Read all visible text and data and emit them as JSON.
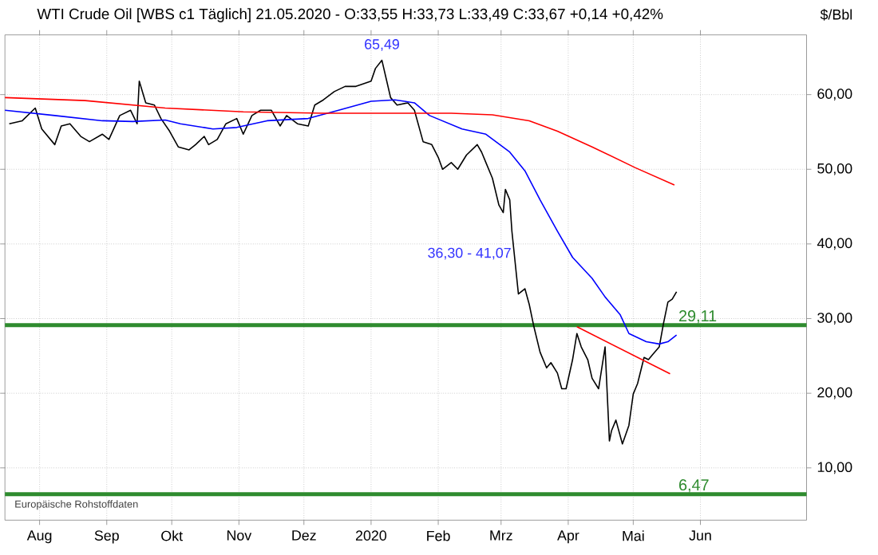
{
  "chart_data": {
    "type": "line",
    "title": "WTI Crude Oil [WBS c1 Täglich] 21.05.2020 - O:33,55 H:33,73 L:33,49 C:33,67 +0,14 +0,42%",
    "ylabel": "$/Bbl",
    "xlim": [
      "2019-07-16",
      "2020-07-20"
    ],
    "xticks": [
      {
        "value": "2019-08-01",
        "label": "Aug"
      },
      {
        "value": "2019-09-01",
        "label": "Sep"
      },
      {
        "value": "2019-10-01",
        "label": "Okt"
      },
      {
        "value": "2019-11-01",
        "label": "Nov"
      },
      {
        "value": "2019-12-01",
        "label": "Dez"
      },
      {
        "value": "2020-01-01",
        "label": "2020"
      },
      {
        "value": "2020-02-01",
        "label": "Feb"
      },
      {
        "value": "2020-03-01",
        "label": "Mrz"
      },
      {
        "value": "2020-04-01",
        "label": "Apr"
      },
      {
        "value": "2020-05-01",
        "label": "Mai"
      },
      {
        "value": "2020-06-01",
        "label": "Jun"
      }
    ],
    "ylim": [
      3,
      68
    ],
    "yticks": [
      {
        "value": 10,
        "label": "10,00"
      },
      {
        "value": 20,
        "label": "20,00"
      },
      {
        "value": 30,
        "label": "30,00"
      },
      {
        "value": 40,
        "label": "40,00"
      },
      {
        "value": 50,
        "label": "50,00"
      },
      {
        "value": 60,
        "label": "60,00"
      }
    ],
    "grid": true,
    "series": [
      {
        "color": "#000000",
        "x": [
          "2019-07-18",
          "2019-07-24",
          "2019-07-30",
          "2019-08-02",
          "2019-08-08",
          "2019-08-11",
          "2019-08-15",
          "2019-08-20",
          "2019-08-24",
          "2019-08-30",
          "2019-09-02",
          "2019-09-07",
          "2019-09-12",
          "2019-09-15",
          "2019-09-16",
          "2019-09-19",
          "2019-09-23",
          "2019-09-26",
          "2019-09-30",
          "2019-10-04",
          "2019-10-09",
          "2019-10-12",
          "2019-10-16",
          "2019-10-18",
          "2019-10-22",
          "2019-10-26",
          "2019-10-31",
          "2019-11-03",
          "2019-11-07",
          "2019-11-11",
          "2019-11-16",
          "2019-11-20",
          "2019-11-23",
          "2019-11-28",
          "2019-12-03",
          "2019-12-06",
          "2019-12-10",
          "2019-12-15",
          "2019-12-20",
          "2019-12-25",
          "2019-12-28",
          "2020-01-01",
          "2020-01-03",
          "2020-01-06",
          "2020-01-08",
          "2020-01-10",
          "2020-01-13",
          "2020-01-18",
          "2020-01-21",
          "2020-01-23",
          "2020-01-25",
          "2020-01-29",
          "2020-02-01",
          "2020-02-03",
          "2020-02-07",
          "2020-02-10",
          "2020-02-14",
          "2020-02-19",
          "2020-02-21",
          "2020-02-23",
          "2020-02-26",
          "2020-02-29",
          "2020-03-02",
          "2020-03-03",
          "2020-03-05",
          "2020-03-06",
          "2020-03-09",
          "2020-03-12",
          "2020-03-14",
          "2020-03-16",
          "2020-03-19",
          "2020-03-22",
          "2020-03-24",
          "2020-03-27",
          "2020-03-29",
          "2020-03-31",
          "2020-04-03",
          "2020-04-05",
          "2020-04-07",
          "2020-04-10",
          "2020-04-12",
          "2020-04-15",
          "2020-04-18",
          "2020-04-20",
          "2020-04-21",
          "2020-04-23",
          "2020-04-26",
          "2020-04-29",
          "2020-05-01",
          "2020-05-03",
          "2020-05-06",
          "2020-05-08",
          "2020-05-10",
          "2020-05-13",
          "2020-05-15",
          "2020-05-17",
          "2020-05-19",
          "2020-05-21"
        ],
        "values": [
          56.1,
          56.5,
          58.2,
          55.4,
          53.3,
          55.8,
          56.1,
          54.4,
          53.7,
          54.7,
          54.0,
          57.2,
          57.9,
          56.1,
          61.8,
          58.9,
          58.6,
          56.8,
          55.1,
          53.0,
          52.6,
          53.3,
          54.4,
          53.3,
          54.0,
          56.1,
          56.8,
          54.7,
          57.2,
          57.9,
          57.9,
          55.8,
          57.2,
          56.1,
          55.8,
          58.6,
          59.3,
          60.4,
          61.1,
          61.1,
          61.4,
          61.8,
          63.5,
          64.6,
          62.1,
          59.6,
          58.6,
          58.9,
          57.9,
          55.8,
          53.7,
          53.3,
          51.6,
          50.0,
          50.9,
          50.0,
          51.9,
          53.3,
          52.3,
          50.9,
          48.8,
          45.2,
          44.2,
          47.3,
          45.9,
          41.7,
          33.3,
          34.0,
          31.9,
          29.1,
          25.5,
          23.4,
          24.1,
          22.7,
          20.6,
          20.6,
          24.5,
          28.0,
          26.2,
          24.5,
          22.0,
          20.6,
          26.2,
          13.6,
          15.0,
          16.4,
          13.2,
          15.7,
          19.9,
          21.3,
          24.8,
          24.5,
          25.2,
          26.2,
          29.4,
          32.2,
          32.6,
          33.6
        ]
      },
      {
        "color": "#0000ff",
        "x": [
          "2019-07-16",
          "2019-08-08",
          "2019-08-30",
          "2019-09-13",
          "2019-09-28",
          "2019-10-05",
          "2019-10-20",
          "2019-10-31",
          "2019-11-14",
          "2019-12-03",
          "2019-12-17",
          "2020-01-01",
          "2020-01-12",
          "2020-01-21",
          "2020-01-28",
          "2020-02-12",
          "2020-02-23",
          "2020-03-05",
          "2020-03-12",
          "2020-03-19",
          "2020-03-27",
          "2020-04-03",
          "2020-04-12",
          "2020-04-18",
          "2020-04-25",
          "2020-04-29",
          "2020-05-07",
          "2020-05-13",
          "2020-05-17",
          "2020-05-21"
        ],
        "values": [
          57.9,
          57.2,
          56.5,
          56.4,
          56.6,
          56.1,
          55.4,
          55.6,
          56.5,
          56.8,
          57.9,
          59.1,
          59.3,
          58.9,
          57.2,
          55.4,
          54.7,
          52.3,
          49.8,
          45.9,
          41.7,
          38.2,
          35.4,
          32.9,
          30.5,
          28.0,
          26.9,
          26.6,
          26.9,
          27.8
        ]
      },
      {
        "color": "#ff0000",
        "x": [
          "2019-07-16",
          "2019-08-22",
          "2019-09-28",
          "2019-11-03",
          "2019-12-10",
          "2020-02-07",
          "2020-02-26",
          "2020-03-14",
          "2020-03-27",
          "2020-04-12",
          "2020-05-02",
          "2020-05-20"
        ],
        "values": [
          59.6,
          59.2,
          58.2,
          57.7,
          57.5,
          57.5,
          57.3,
          56.5,
          55.1,
          53.0,
          50.2,
          47.9
        ]
      },
      {
        "color": "#ff0000",
        "x": [
          "2020-04-05",
          "2020-05-18"
        ],
        "values": [
          28.9,
          22.6
        ]
      }
    ],
    "ref_lines": [
      {
        "axis": "y",
        "value": 29.11,
        "label": "29,11",
        "color": "#2e8b2e"
      },
      {
        "axis": "y",
        "value": 6.47,
        "label": "6,47",
        "color": "#2e8b2e"
      }
    ],
    "annotations": [
      {
        "text": "65,49",
        "x": "2020-01-06",
        "y": 65.49
      },
      {
        "text": "36,30 - 41,07",
        "x": "2020-03-07",
        "y": 38.7
      },
      "Europäische Rohstoffdaten"
    ]
  }
}
